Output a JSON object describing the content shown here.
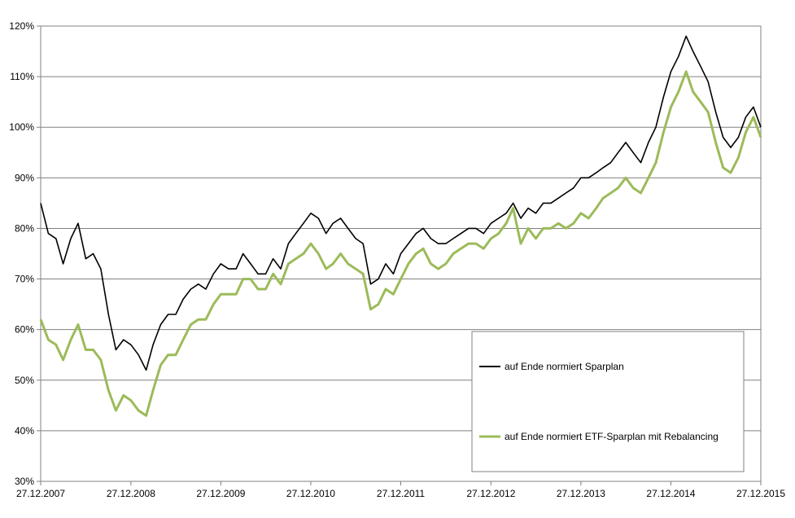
{
  "chart_data": {
    "type": "line",
    "title": "",
    "xlabel": "",
    "ylabel": "",
    "x_ticks": [
      "27.12.2007",
      "27.12.2008",
      "27.12.2009",
      "27.12.2010",
      "27.12.2011",
      "27.12.2012",
      "27.12.2013",
      "27.12.2014",
      "27.12.2015"
    ],
    "y_ticks": [
      "30%",
      "40%",
      "50%",
      "60%",
      "70%",
      "80%",
      "90%",
      "100%",
      "110%",
      "120%"
    ],
    "ylim": [
      0.3,
      1.2
    ],
    "xlim": [
      "27.12.2007",
      "27.12.2015"
    ],
    "grid": "horizontal",
    "legend_position": "bottom-right",
    "series": [
      {
        "name": "auf Ende normiert Sparplan",
        "color": "#000000",
        "x": [
          "27.12.2007",
          "27.01.2008",
          "27.02.2008",
          "27.03.2008",
          "27.04.2008",
          "27.05.2008",
          "27.06.2008",
          "27.07.2008",
          "27.08.2008",
          "27.09.2008",
          "27.10.2008",
          "27.11.2008",
          "27.12.2008",
          "27.01.2009",
          "27.02.2009",
          "27.03.2009",
          "27.04.2009",
          "27.05.2009",
          "27.06.2009",
          "27.07.2009",
          "27.08.2009",
          "27.09.2009",
          "27.10.2009",
          "27.11.2009",
          "27.12.2009",
          "27.01.2010",
          "27.02.2010",
          "27.03.2010",
          "27.04.2010",
          "27.05.2010",
          "27.06.2010",
          "27.07.2010",
          "27.08.2010",
          "27.09.2010",
          "27.10.2010",
          "27.11.2010",
          "27.12.2010",
          "27.01.2011",
          "27.02.2011",
          "27.03.2011",
          "27.04.2011",
          "27.05.2011",
          "27.06.2011",
          "27.07.2011",
          "27.08.2011",
          "27.09.2011",
          "27.10.2011",
          "27.11.2011",
          "27.12.2011",
          "27.01.2012",
          "27.02.2012",
          "27.03.2012",
          "27.04.2012",
          "27.05.2012",
          "27.06.2012",
          "27.07.2012",
          "27.08.2012",
          "27.09.2012",
          "27.10.2012",
          "27.11.2012",
          "27.12.2012",
          "27.01.2013",
          "27.02.2013",
          "27.03.2013",
          "27.04.2013",
          "27.05.2013",
          "27.06.2013",
          "27.07.2013",
          "27.08.2013",
          "27.09.2013",
          "27.10.2013",
          "27.11.2013",
          "27.12.2013",
          "27.01.2014",
          "27.02.2014",
          "27.03.2014",
          "27.04.2014",
          "27.05.2014",
          "27.06.2014",
          "27.07.2014",
          "27.08.2014",
          "27.09.2014",
          "27.10.2014",
          "27.11.2014",
          "27.12.2014",
          "27.01.2015",
          "27.02.2015",
          "27.03.2015",
          "27.04.2015",
          "27.05.2015",
          "27.06.2015",
          "27.07.2015",
          "27.08.2015",
          "27.09.2015",
          "27.10.2015",
          "27.11.2015",
          "27.12.2015"
        ],
        "y": [
          0.85,
          0.79,
          0.78,
          0.73,
          0.78,
          0.81,
          0.74,
          0.75,
          0.72,
          0.63,
          0.56,
          0.58,
          0.57,
          0.55,
          0.52,
          0.57,
          0.61,
          0.63,
          0.63,
          0.66,
          0.68,
          0.69,
          0.68,
          0.71,
          0.73,
          0.72,
          0.72,
          0.75,
          0.73,
          0.71,
          0.71,
          0.74,
          0.72,
          0.77,
          0.79,
          0.81,
          0.83,
          0.82,
          0.79,
          0.81,
          0.82,
          0.8,
          0.78,
          0.77,
          0.69,
          0.7,
          0.73,
          0.71,
          0.75,
          0.77,
          0.79,
          0.8,
          0.78,
          0.77,
          0.77,
          0.78,
          0.79,
          0.8,
          0.8,
          0.79,
          0.81,
          0.82,
          0.83,
          0.85,
          0.82,
          0.84,
          0.83,
          0.85,
          0.85,
          0.86,
          0.87,
          0.88,
          0.9,
          0.9,
          0.91,
          0.92,
          0.93,
          0.95,
          0.97,
          0.95,
          0.93,
          0.97,
          1.0,
          1.06,
          1.11,
          1.14,
          1.18,
          1.15,
          1.12,
          1.09,
          1.03,
          0.98,
          0.96,
          0.98,
          1.02,
          1.04,
          1.0
        ]
      },
      {
        "name": "auf Ende normiert ETF-Sparplan mit Rebalancing",
        "color": "#9bbb59",
        "x": [
          "27.12.2007",
          "27.01.2008",
          "27.02.2008",
          "27.03.2008",
          "27.04.2008",
          "27.05.2008",
          "27.06.2008",
          "27.07.2008",
          "27.08.2008",
          "27.09.2008",
          "27.10.2008",
          "27.11.2008",
          "27.12.2008",
          "27.01.2009",
          "27.02.2009",
          "27.03.2009",
          "27.04.2009",
          "27.05.2009",
          "27.06.2009",
          "27.07.2009",
          "27.08.2009",
          "27.09.2009",
          "27.10.2009",
          "27.11.2009",
          "27.12.2009",
          "27.01.2010",
          "27.02.2010",
          "27.03.2010",
          "27.04.2010",
          "27.05.2010",
          "27.06.2010",
          "27.07.2010",
          "27.08.2010",
          "27.09.2010",
          "27.10.2010",
          "27.11.2010",
          "27.12.2010",
          "27.01.2011",
          "27.02.2011",
          "27.03.2011",
          "27.04.2011",
          "27.05.2011",
          "27.06.2011",
          "27.07.2011",
          "27.08.2011",
          "27.09.2011",
          "27.10.2011",
          "27.11.2011",
          "27.12.2011",
          "27.01.2012",
          "27.02.2012",
          "27.03.2012",
          "27.04.2012",
          "27.05.2012",
          "27.06.2012",
          "27.07.2012",
          "27.08.2012",
          "27.09.2012",
          "27.10.2012",
          "27.11.2012",
          "27.12.2012",
          "27.01.2013",
          "27.02.2013",
          "27.03.2013",
          "27.04.2013",
          "27.05.2013",
          "27.06.2013",
          "27.07.2013",
          "27.08.2013",
          "27.09.2013",
          "27.10.2013",
          "27.11.2013",
          "27.12.2013",
          "27.01.2014",
          "27.02.2014",
          "27.03.2014",
          "27.04.2014",
          "27.05.2014",
          "27.06.2014",
          "27.07.2014",
          "27.08.2014",
          "27.09.2014",
          "27.10.2014",
          "27.11.2014",
          "27.12.2014",
          "27.01.2015",
          "27.02.2015",
          "27.03.2015",
          "27.04.2015",
          "27.05.2015",
          "27.06.2015",
          "27.07.2015",
          "27.08.2015",
          "27.09.2015",
          "27.10.2015",
          "27.11.2015",
          "27.12.2015"
        ],
        "y": [
          0.62,
          0.58,
          0.57,
          0.54,
          0.58,
          0.61,
          0.56,
          0.56,
          0.54,
          0.48,
          0.44,
          0.47,
          0.46,
          0.44,
          0.43,
          0.48,
          0.53,
          0.55,
          0.55,
          0.58,
          0.61,
          0.62,
          0.62,
          0.65,
          0.67,
          0.67,
          0.67,
          0.7,
          0.7,
          0.68,
          0.68,
          0.71,
          0.69,
          0.73,
          0.74,
          0.75,
          0.77,
          0.75,
          0.72,
          0.73,
          0.75,
          0.73,
          0.72,
          0.71,
          0.64,
          0.65,
          0.68,
          0.67,
          0.7,
          0.73,
          0.75,
          0.76,
          0.73,
          0.72,
          0.73,
          0.75,
          0.76,
          0.77,
          0.77,
          0.76,
          0.78,
          0.79,
          0.81,
          0.84,
          0.77,
          0.8,
          0.78,
          0.8,
          0.8,
          0.81,
          0.8,
          0.81,
          0.83,
          0.82,
          0.84,
          0.86,
          0.87,
          0.88,
          0.9,
          0.88,
          0.87,
          0.9,
          0.93,
          0.99,
          1.04,
          1.07,
          1.11,
          1.07,
          1.05,
          1.03,
          0.97,
          0.92,
          0.91,
          0.94,
          0.99,
          1.02,
          0.98
        ]
      }
    ]
  }
}
